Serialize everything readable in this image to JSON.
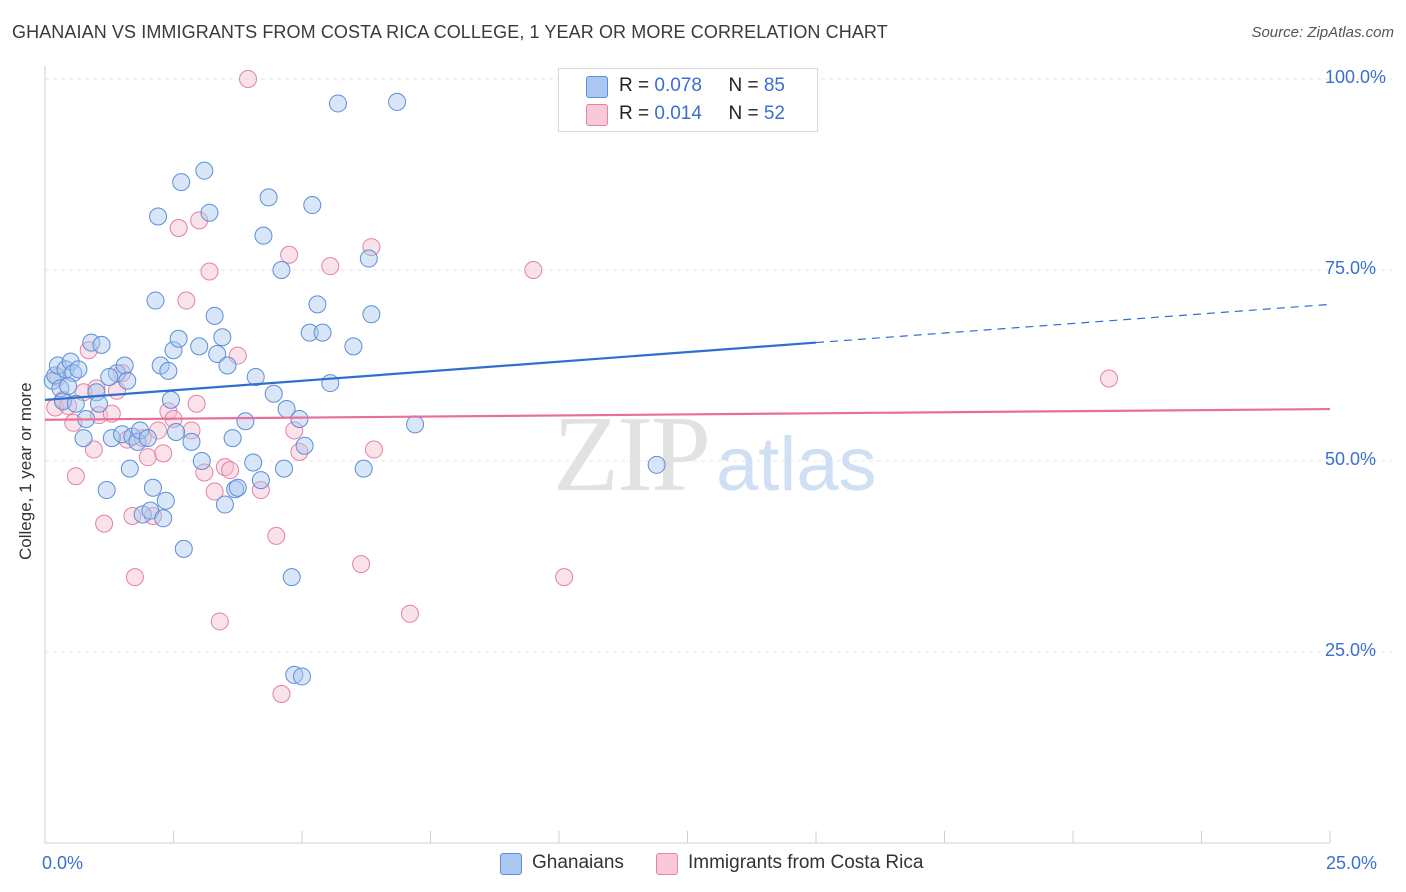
{
  "title": "GHANAIAN VS IMMIGRANTS FROM COSTA RICA COLLEGE, 1 YEAR OR MORE CORRELATION CHART",
  "source": "Source: ZipAtlas.com",
  "watermark": {
    "zip": "ZIP",
    "atlas": "atlas"
  },
  "legend_top": {
    "series1": {
      "r_label": "R = ",
      "r_value": "0.078",
      "n_label": "N = ",
      "n_value": "85"
    },
    "series2": {
      "r_label": "R = ",
      "r_value": "0.014",
      "n_label": "N = ",
      "n_value": "52"
    }
  },
  "legend_bottom": {
    "series1": "Ghanaians",
    "series2": "Immigrants from Costa Rica"
  },
  "colors": {
    "blue": "#5b8fd6",
    "blue_fill": "#a9c7f0",
    "blue_line": "#2f6fd0",
    "pink": "#e582a3",
    "pink_fill": "#f5bfd0",
    "pink_line": "#e86f99",
    "tick_text": "#3a6fd1"
  },
  "chart_data": {
    "type": "scatter",
    "title": "GHANAIAN VS IMMIGRANTS FROM COSTA RICA COLLEGE, 1 YEAR OR MORE CORRELATION CHART",
    "xlabel": "",
    "ylabel": "College, 1 year or more",
    "xlim": [
      0,
      25
    ],
    "ylim": [
      0,
      102
    ],
    "x_tick_labels": [
      "0.0%",
      "25.0%"
    ],
    "y_ticks": [
      25,
      50,
      75,
      100
    ],
    "y_tick_labels": [
      "25.0%",
      "50.0%",
      "75.0%",
      "100.0%"
    ],
    "series": [
      {
        "name": "Ghanaians",
        "R": 0.078,
        "N": 85,
        "trend": {
          "x0": 0,
          "y0": 58.0,
          "x1": 15,
          "y1": 65.5,
          "dashed_to_x": 25,
          "dashed_to_y": 70.5
        },
        "points": [
          [
            0.15,
            60.5
          ],
          [
            0.2,
            61.2
          ],
          [
            0.25,
            62.5
          ],
          [
            0.3,
            59.5
          ],
          [
            0.35,
            57.8
          ],
          [
            0.4,
            62.0
          ],
          [
            0.5,
            63.0
          ],
          [
            0.55,
            61.5
          ],
          [
            0.65,
            62.0
          ],
          [
            0.75,
            53.0
          ],
          [
            0.8,
            55.5
          ],
          [
            0.9,
            65.5
          ],
          [
            1.0,
            59.0
          ],
          [
            1.05,
            57.5
          ],
          [
            1.1,
            65.2
          ],
          [
            1.2,
            46.2
          ],
          [
            1.3,
            53.0
          ],
          [
            1.4,
            61.5
          ],
          [
            1.5,
            53.5
          ],
          [
            1.55,
            62.5
          ],
          [
            1.6,
            60.5
          ],
          [
            1.65,
            49.0
          ],
          [
            1.7,
            53.2
          ],
          [
            1.8,
            52.5
          ],
          [
            1.85,
            54.0
          ],
          [
            1.9,
            43.0
          ],
          [
            2.0,
            53.0
          ],
          [
            2.05,
            43.5
          ],
          [
            2.1,
            46.5
          ],
          [
            2.15,
            71.0
          ],
          [
            2.2,
            82.0
          ],
          [
            2.25,
            62.5
          ],
          [
            2.35,
            44.8
          ],
          [
            2.4,
            61.8
          ],
          [
            2.45,
            58.0
          ],
          [
            2.5,
            64.5
          ],
          [
            2.55,
            53.8
          ],
          [
            2.6,
            66.0
          ],
          [
            2.65,
            86.5
          ],
          [
            2.7,
            38.5
          ],
          [
            2.85,
            52.5
          ],
          [
            3.0,
            65.0
          ],
          [
            3.05,
            50.0
          ],
          [
            3.1,
            88.0
          ],
          [
            3.2,
            82.5
          ],
          [
            3.3,
            69.0
          ],
          [
            3.35,
            64.0
          ],
          [
            3.45,
            66.2
          ],
          [
            3.5,
            44.3
          ],
          [
            3.55,
            62.5
          ],
          [
            3.65,
            53.0
          ],
          [
            3.7,
            46.3
          ],
          [
            3.75,
            46.5
          ],
          [
            4.1,
            61.0
          ],
          [
            4.2,
            47.5
          ],
          [
            4.25,
            79.5
          ],
          [
            4.35,
            84.5
          ],
          [
            4.45,
            58.8
          ],
          [
            4.6,
            75.0
          ],
          [
            4.65,
            49.0
          ],
          [
            4.7,
            56.8
          ],
          [
            4.8,
            34.8
          ],
          [
            4.85,
            22.0
          ],
          [
            4.95,
            55.5
          ],
          [
            5.0,
            21.8
          ],
          [
            5.05,
            52.0
          ],
          [
            5.15,
            66.8
          ],
          [
            5.2,
            83.5
          ],
          [
            5.3,
            70.5
          ],
          [
            5.4,
            66.8
          ],
          [
            5.55,
            60.2
          ],
          [
            5.7,
            96.8
          ],
          [
            6.0,
            65.0
          ],
          [
            6.2,
            49.0
          ],
          [
            6.3,
            76.5
          ],
          [
            6.35,
            69.2
          ],
          [
            6.85,
            97.0
          ],
          [
            7.2,
            54.8
          ],
          [
            11.9,
            49.5
          ],
          [
            0.45,
            59.8
          ],
          [
            0.6,
            57.5
          ],
          [
            1.25,
            61.0
          ],
          [
            2.3,
            42.5
          ],
          [
            3.9,
            55.2
          ],
          [
            4.05,
            49.8
          ]
        ]
      },
      {
        "name": "Immigrants from Costa Rica",
        "R": 0.014,
        "N": 52,
        "trend": {
          "x0": 0,
          "y0": 55.4,
          "x1": 25,
          "y1": 56.8
        },
        "points": [
          [
            0.2,
            57.0
          ],
          [
            0.35,
            58.0
          ],
          [
            0.45,
            57.2
          ],
          [
            0.55,
            55.0
          ],
          [
            0.6,
            48.0
          ],
          [
            0.75,
            59.0
          ],
          [
            0.85,
            64.5
          ],
          [
            0.95,
            51.5
          ],
          [
            1.0,
            59.5
          ],
          [
            1.05,
            56.0
          ],
          [
            1.15,
            41.8
          ],
          [
            1.3,
            56.2
          ],
          [
            1.4,
            59.2
          ],
          [
            1.5,
            61.5
          ],
          [
            1.6,
            52.8
          ],
          [
            1.7,
            42.8
          ],
          [
            1.75,
            34.8
          ],
          [
            1.9,
            53.0
          ],
          [
            2.0,
            50.5
          ],
          [
            2.1,
            42.8
          ],
          [
            2.2,
            54.0
          ],
          [
            2.3,
            51.0
          ],
          [
            2.4,
            56.5
          ],
          [
            2.5,
            55.5
          ],
          [
            2.6,
            80.5
          ],
          [
            2.75,
            71.0
          ],
          [
            2.85,
            54.0
          ],
          [
            2.95,
            57.5
          ],
          [
            3.0,
            81.5
          ],
          [
            3.1,
            48.5
          ],
          [
            3.2,
            74.8
          ],
          [
            3.3,
            46.0
          ],
          [
            3.4,
            29.0
          ],
          [
            3.5,
            49.2
          ],
          [
            3.6,
            48.8
          ],
          [
            3.75,
            63.8
          ],
          [
            3.95,
            100.0
          ],
          [
            4.2,
            46.2
          ],
          [
            4.5,
            40.2
          ],
          [
            4.6,
            19.5
          ],
          [
            4.75,
            77.0
          ],
          [
            4.85,
            54.0
          ],
          [
            4.95,
            51.2
          ],
          [
            5.55,
            75.5
          ],
          [
            6.15,
            36.5
          ],
          [
            6.35,
            78.0
          ],
          [
            6.4,
            51.5
          ],
          [
            7.1,
            30.0
          ],
          [
            9.5,
            75.0
          ],
          [
            10.1,
            34.8
          ],
          [
            20.7,
            60.8
          ],
          [
            0.25,
            61.0
          ]
        ]
      }
    ]
  }
}
